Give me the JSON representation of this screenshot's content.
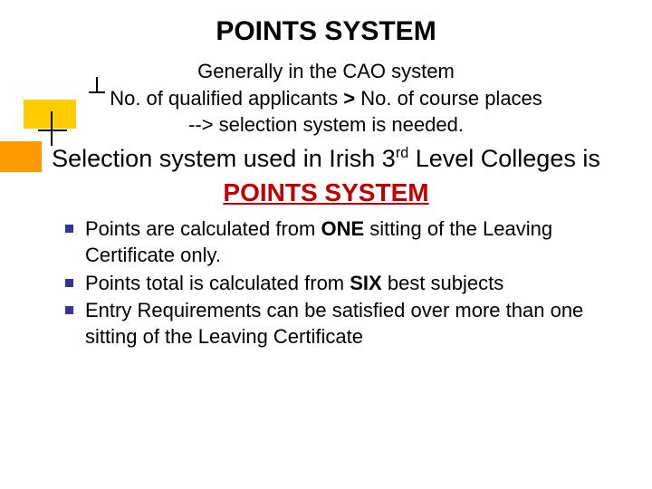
{
  "title": "POINTS SYSTEM",
  "intro": {
    "line1": "Generally in the CAO system",
    "line2_a": "No. of qualified applicants ",
    "line2_gt": ">",
    "line2_b": " No. of course places",
    "line3": "-->  selection system is needed."
  },
  "sub": {
    "pre": "Selection system used in Irish 3",
    "sup": "rd",
    "post": " Level Colleges is"
  },
  "ps_red": "POINTS SYSTEM",
  "bullets": [
    {
      "pre": "Points are calculated from ",
      "bold": "ONE",
      "post": " sitting of the Leaving Certificate only."
    },
    {
      "pre": "Points total is calculated from ",
      "bold": "SIX",
      "post": " best subjects"
    },
    {
      "pre": "Entry Requirements can be satisfied over more than one sitting of the Leaving Certificate",
      "bold": "",
      "post": ""
    }
  ],
  "colors": {
    "bullet_square": "#333399",
    "red_heading": "#c00000",
    "deco_sq1": "#ffcc00",
    "deco_sq2": "#ff9900"
  }
}
